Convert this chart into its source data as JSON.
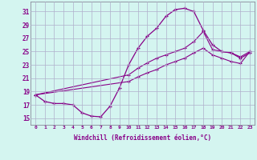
{
  "bg_color": "#d4f5f0",
  "grid_color": "#b0b0cc",
  "line_color": "#880088",
  "xlim": [
    -0.5,
    23.5
  ],
  "ylim": [
    14,
    32.5
  ],
  "yticks": [
    15,
    17,
    19,
    21,
    23,
    25,
    27,
    29,
    31
  ],
  "xticks": [
    0,
    1,
    2,
    3,
    4,
    5,
    6,
    7,
    8,
    9,
    10,
    11,
    12,
    13,
    14,
    15,
    16,
    17,
    18,
    19,
    20,
    21,
    22,
    23
  ],
  "xlabel": "Windchill (Refroidissement éolien,°C)",
  "curve1_x": [
    0,
    1,
    2,
    3,
    4,
    5,
    6,
    7,
    8,
    9,
    10,
    11,
    12,
    13,
    14,
    15,
    16,
    17,
    18,
    19,
    20,
    21,
    22,
    23
  ],
  "curve1_y": [
    18.5,
    17.5,
    17.2,
    17.2,
    17.0,
    15.8,
    15.3,
    15.2,
    16.8,
    19.5,
    23.0,
    25.5,
    27.3,
    28.5,
    30.3,
    31.3,
    31.5,
    31.0,
    28.2,
    26.0,
    25.0,
    24.8,
    24.0,
    24.8
  ],
  "curve2_x": [
    0,
    10,
    11,
    12,
    13,
    14,
    15,
    16,
    17,
    18,
    19,
    20,
    21,
    22,
    23
  ],
  "curve2_y": [
    18.5,
    21.5,
    22.5,
    23.3,
    24.0,
    24.5,
    25.0,
    25.5,
    26.5,
    28.0,
    25.3,
    25.0,
    24.8,
    24.2,
    25.0
  ],
  "curve3_x": [
    0,
    10,
    11,
    12,
    13,
    14,
    15,
    16,
    17,
    18,
    19,
    20,
    21,
    22,
    23
  ],
  "curve3_y": [
    18.5,
    20.5,
    21.2,
    21.8,
    22.3,
    23.0,
    23.5,
    24.0,
    24.8,
    25.5,
    24.5,
    24.0,
    23.5,
    23.2,
    25.0
  ]
}
